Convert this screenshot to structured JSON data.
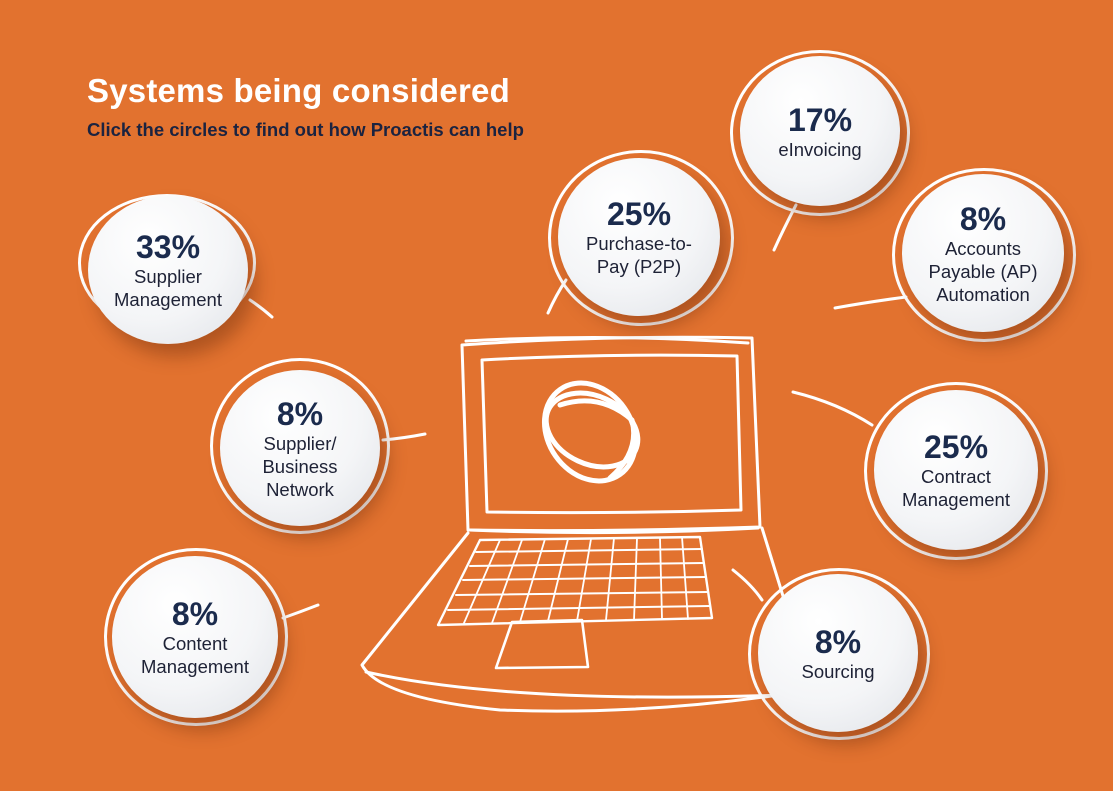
{
  "header": {
    "title": "Systems being considered",
    "subtitle": "Click the circles to find out how Proactis can help"
  },
  "colors": {
    "background": "#E2722F",
    "percent_text": "#1B2B4D",
    "label_text": "#1E2236",
    "circle_fill": "#F4F5F7",
    "line_art": "#FFFFFF"
  },
  "icons": [
    "laptop-icon",
    "proactis-logo-icon"
  ],
  "systems": [
    {
      "key": "supplier-management",
      "percent": "33%",
      "label": "Supplier\nManagement"
    },
    {
      "key": "supplier-business-network",
      "percent": "8%",
      "label": "Supplier/\nBusiness\nNetwork"
    },
    {
      "key": "content-management",
      "percent": "8%",
      "label": "Content\nManagement"
    },
    {
      "key": "purchase-to-pay",
      "percent": "25%",
      "label": "Purchase-to-\nPay (P2P)"
    },
    {
      "key": "einvoicing",
      "percent": "17%",
      "label": "eInvoicing"
    },
    {
      "key": "accounts-payable-automation",
      "percent": "8%",
      "label": "Accounts\nPayable (AP)\nAutomation"
    },
    {
      "key": "contract-management",
      "percent": "25%",
      "label": "Contract\nManagement"
    },
    {
      "key": "sourcing",
      "percent": "8%",
      "label": "Sourcing"
    }
  ]
}
